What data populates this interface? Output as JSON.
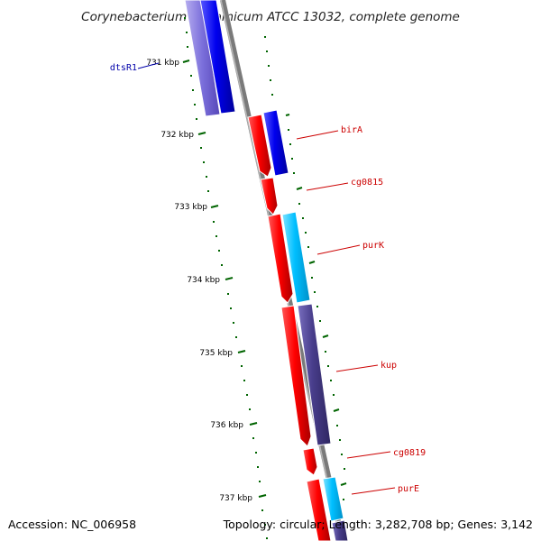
{
  "title": "Corynebacterium glutamicum ATCC 13032, complete genome",
  "footer": {
    "accession": "Accession: NC_006958",
    "summary": "Topology: circular; Length: 3,282,708 bp; Genes: 3,142"
  },
  "colors": {
    "forward_cds": "#ff0000",
    "reverse_cds": "#0000ee",
    "rna": "#6a5acd",
    "cyan_feature": "#00bfff",
    "purple_feature": "#483d8b",
    "backbone": "#808080",
    "tick": "#006400",
    "label_red": "#cc0000",
    "label_blue": "#0000aa"
  },
  "ticks": [
    "731 kbp",
    "732 kbp",
    "733 kbp",
    "734 kbp",
    "735 kbp",
    "736 kbp",
    "737 kbp"
  ],
  "features": [
    {
      "label": "dtsR1",
      "strand": "reverse"
    },
    {
      "label": "birA",
      "strand": "forward"
    },
    {
      "label": "cg0815",
      "strand": "forward"
    },
    {
      "label": "purK",
      "strand": "forward"
    },
    {
      "label": "kup",
      "strand": "forward"
    },
    {
      "label": "cg0819",
      "strand": "forward"
    },
    {
      "label": "purE",
      "strand": "forward"
    }
  ]
}
